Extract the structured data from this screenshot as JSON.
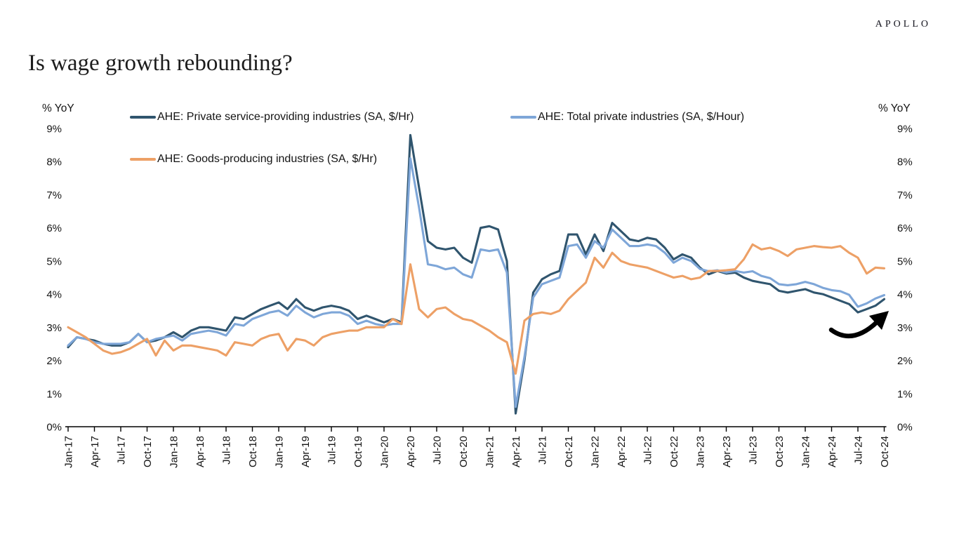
{
  "page": {
    "brand": "APOLLO",
    "title": "Is wage growth rebounding?"
  },
  "chart_data": {
    "type": "line",
    "title": "Is wage growth rebounding?",
    "ylabel_left": "% YoY",
    "ylabel_right": "% YoY",
    "ylim": [
      0,
      9
    ],
    "y_ticks": [
      "0%",
      "1%",
      "2%",
      "3%",
      "4%",
      "5%",
      "6%",
      "7%",
      "8%",
      "9%"
    ],
    "grid": "off",
    "legend_position": "top-inside",
    "x_frequency": "monthly",
    "x_range": [
      "Jan-17",
      "Oct-24"
    ],
    "x_tick_labels": [
      "Jan-17",
      "Apr-17",
      "Jul-17",
      "Oct-17",
      "Jan-18",
      "Apr-18",
      "Jul-18",
      "Oct-18",
      "Jan-19",
      "Apr-19",
      "Jul-19",
      "Oct-19",
      "Jan-20",
      "Apr-20",
      "Jul-20",
      "Oct-20",
      "Jan-21",
      "Apr-21",
      "Jul-21",
      "Oct-21",
      "Jan-22",
      "Apr-22",
      "Jul-22",
      "Oct-22",
      "Jan-23",
      "Apr-23",
      "Jul-23",
      "Oct-23",
      "Jan-24",
      "Apr-24",
      "Jul-24",
      "Oct-24"
    ],
    "series": [
      {
        "name": "AHE: Private service-providing industries (SA, $/Hr)",
        "color": "#30556E",
        "values": [
          2.4,
          2.7,
          2.65,
          2.6,
          2.5,
          2.45,
          2.45,
          2.55,
          2.8,
          2.55,
          2.6,
          2.7,
          2.85,
          2.7,
          2.9,
          3.0,
          3.0,
          2.95,
          2.9,
          3.3,
          3.25,
          3.4,
          3.55,
          3.65,
          3.75,
          3.55,
          3.85,
          3.6,
          3.5,
          3.6,
          3.65,
          3.6,
          3.5,
          3.25,
          3.35,
          3.25,
          3.15,
          3.25,
          3.15,
          8.8,
          7.2,
          5.6,
          5.4,
          5.35,
          5.4,
          5.1,
          4.95,
          6.0,
          6.05,
          5.95,
          5.0,
          0.4,
          2.0,
          4.05,
          4.45,
          4.6,
          4.7,
          5.8,
          5.8,
          5.2,
          5.8,
          5.3,
          6.15,
          5.9,
          5.65,
          5.6,
          5.7,
          5.65,
          5.4,
          5.05,
          5.2,
          5.1,
          4.8,
          4.6,
          4.7,
          4.62,
          4.65,
          4.5,
          4.4,
          4.35,
          4.3,
          4.1,
          4.05,
          4.1,
          4.15,
          4.05,
          4.0,
          3.9,
          3.8,
          3.7,
          3.45,
          3.55,
          3.65,
          3.85
        ]
      },
      {
        "name": "AHE: Total private industries (SA, $/Hour)",
        "color": "#7EA6D8",
        "values": [
          2.45,
          2.7,
          2.65,
          2.55,
          2.5,
          2.5,
          2.5,
          2.55,
          2.8,
          2.55,
          2.65,
          2.7,
          2.75,
          2.6,
          2.8,
          2.85,
          2.9,
          2.85,
          2.75,
          3.1,
          3.05,
          3.25,
          3.35,
          3.45,
          3.5,
          3.35,
          3.65,
          3.45,
          3.3,
          3.4,
          3.45,
          3.45,
          3.35,
          3.1,
          3.2,
          3.1,
          3.05,
          3.1,
          3.1,
          8.1,
          6.6,
          4.9,
          4.85,
          4.75,
          4.8,
          4.6,
          4.5,
          5.35,
          5.3,
          5.35,
          4.65,
          0.6,
          2.1,
          3.9,
          4.3,
          4.4,
          4.5,
          5.45,
          5.5,
          5.1,
          5.6,
          5.4,
          5.95,
          5.7,
          5.45,
          5.45,
          5.5,
          5.45,
          5.25,
          4.95,
          5.1,
          5.0,
          4.76,
          4.69,
          4.72,
          4.65,
          4.7,
          4.65,
          4.69,
          4.55,
          4.48,
          4.3,
          4.27,
          4.3,
          4.37,
          4.3,
          4.19,
          4.12,
          4.09,
          3.98,
          3.62,
          3.72,
          3.87,
          3.97
        ]
      },
      {
        "name": "AHE: Goods-producing industries (SA, $/Hr)",
        "color": "#EDA066",
        "values": [
          3.0,
          2.85,
          2.7,
          2.5,
          2.3,
          2.2,
          2.25,
          2.35,
          2.5,
          2.65,
          2.15,
          2.6,
          2.3,
          2.45,
          2.45,
          2.4,
          2.35,
          2.3,
          2.15,
          2.55,
          2.5,
          2.45,
          2.65,
          2.75,
          2.8,
          2.3,
          2.65,
          2.6,
          2.45,
          2.7,
          2.8,
          2.85,
          2.9,
          2.9,
          3.0,
          3.0,
          3.0,
          3.25,
          3.1,
          4.9,
          3.55,
          3.3,
          3.55,
          3.6,
          3.4,
          3.25,
          3.2,
          3.05,
          2.9,
          2.7,
          2.55,
          1.6,
          3.2,
          3.4,
          3.45,
          3.4,
          3.5,
          3.85,
          4.1,
          4.35,
          5.1,
          4.8,
          5.25,
          5.0,
          4.9,
          4.85,
          4.8,
          4.7,
          4.6,
          4.5,
          4.55,
          4.45,
          4.5,
          4.7,
          4.7,
          4.72,
          4.75,
          5.05,
          5.5,
          5.35,
          5.4,
          5.3,
          5.15,
          5.35,
          5.4,
          5.45,
          5.42,
          5.4,
          5.45,
          5.25,
          5.1,
          4.62,
          4.8,
          4.78
        ]
      }
    ],
    "annotations": [
      {
        "type": "curved-arrow",
        "direction": "up-right",
        "color": "#000000",
        "position": "lower-right-2024"
      }
    ]
  }
}
